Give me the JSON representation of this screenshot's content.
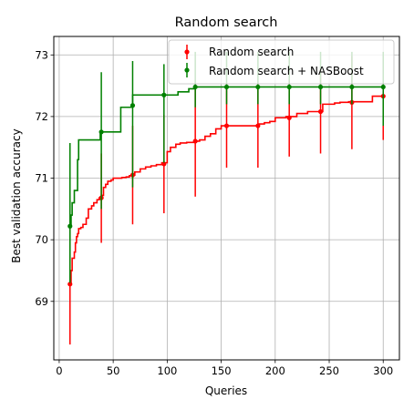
{
  "chart_data": {
    "type": "line",
    "title": "Random search",
    "xlabel": "Queries",
    "ylabel": "Best validation accuracy",
    "xlim": [
      -5,
      315
    ],
    "ylim": [
      68.05,
      73.3
    ],
    "xticks": [
      0,
      50,
      100,
      150,
      200,
      250,
      300
    ],
    "yticks": [
      69,
      70,
      71,
      72,
      73
    ],
    "grid": true,
    "legend_position": "top-right",
    "colors": {
      "Random search": "#ff0000",
      "Random search + NASBoost": "#008000"
    },
    "series": [
      {
        "name": "Random search",
        "color": "#ff0000",
        "x": [
          10,
          11,
          12,
          13,
          14,
          15,
          16,
          17,
          18,
          20,
          22,
          25,
          27,
          30,
          32,
          35,
          37,
          39,
          41,
          43,
          45,
          48,
          50,
          53,
          58,
          62,
          65,
          68,
          70,
          75,
          80,
          85,
          90,
          95,
          97,
          100,
          103,
          108,
          112,
          118,
          125,
          130,
          135,
          140,
          145,
          150,
          155,
          165,
          175,
          180,
          185,
          190,
          195,
          200,
          210,
          220,
          230,
          238,
          244,
          255,
          260,
          268,
          280,
          290,
          300
        ],
        "y": [
          69.28,
          69.5,
          69.7,
          69.7,
          69.8,
          69.95,
          70.05,
          70.1,
          70.18,
          70.2,
          70.25,
          70.35,
          70.5,
          70.55,
          70.6,
          70.65,
          70.68,
          70.72,
          70.85,
          70.9,
          70.95,
          70.97,
          71.0,
          71.0,
          71.01,
          71.02,
          71.04,
          71.05,
          71.1,
          71.15,
          71.18,
          71.2,
          71.22,
          71.25,
          71.25,
          71.43,
          71.5,
          71.55,
          71.57,
          71.58,
          71.6,
          71.62,
          71.68,
          71.72,
          71.8,
          71.85,
          71.85,
          71.85,
          71.85,
          71.85,
          71.88,
          71.9,
          71.92,
          71.98,
          72.0,
          72.05,
          72.08,
          72.08,
          72.2,
          72.22,
          72.23,
          72.24,
          72.24,
          72.33,
          72.33
        ],
        "markers": [
          {
            "x": 10,
            "y": 69.28,
            "low": 68.3,
            "high": 70.25
          },
          {
            "x": 39,
            "y": 70.68,
            "low": 69.95,
            "high": 71.4
          },
          {
            "x": 68,
            "y": 71.05,
            "low": 70.25,
            "high": 71.85
          },
          {
            "x": 97,
            "y": 71.23,
            "low": 70.43,
            "high": 72.03
          },
          {
            "x": 126,
            "y": 71.6,
            "low": 70.7,
            "high": 72.47
          },
          {
            "x": 155,
            "y": 71.85,
            "low": 71.17,
            "high": 72.52
          },
          {
            "x": 184,
            "y": 71.85,
            "low": 71.17,
            "high": 72.53
          },
          {
            "x": 213,
            "y": 71.98,
            "low": 71.35,
            "high": 72.6
          },
          {
            "x": 242,
            "y": 72.08,
            "low": 71.4,
            "high": 72.77
          },
          {
            "x": 271,
            "y": 72.23,
            "low": 71.47,
            "high": 72.98
          },
          {
            "x": 300,
            "y": 72.33,
            "low": 71.62,
            "high": 73.03
          }
        ]
      },
      {
        "name": "Random search + NASBoost",
        "color": "#008000",
        "x": [
          10,
          11,
          12,
          14,
          15,
          16,
          17,
          18,
          20,
          25,
          30,
          35,
          38,
          39,
          40,
          45,
          50,
          55,
          57,
          60,
          65,
          67,
          68,
          70,
          80,
          90,
          95,
          97,
          100,
          110,
          120,
          124,
          126,
          130,
          150,
          180,
          200,
          250,
          300
        ],
        "y": [
          70.22,
          70.4,
          70.6,
          70.8,
          70.8,
          70.8,
          71.3,
          71.62,
          71.62,
          71.62,
          71.62,
          71.62,
          71.75,
          71.75,
          71.75,
          71.75,
          71.75,
          71.75,
          72.15,
          72.15,
          72.15,
          72.18,
          72.35,
          72.35,
          72.35,
          72.35,
          72.35,
          72.35,
          72.35,
          72.4,
          72.45,
          72.45,
          72.48,
          72.48,
          72.48,
          72.48,
          72.48,
          72.48,
          72.48
        ],
        "markers": [
          {
            "x": 10,
            "y": 70.22,
            "low": 69.3,
            "high": 71.57
          },
          {
            "x": 39,
            "y": 71.75,
            "low": 70.5,
            "high": 72.72
          },
          {
            "x": 68,
            "y": 72.18,
            "low": 70.85,
            "high": 72.9
          },
          {
            "x": 97,
            "y": 72.35,
            "low": 71.25,
            "high": 72.85
          },
          {
            "x": 126,
            "y": 72.48,
            "low": 72.15,
            "high": 73.05
          },
          {
            "x": 155,
            "y": 72.48,
            "low": 72.2,
            "high": 73.05
          },
          {
            "x": 184,
            "y": 72.48,
            "low": 72.2,
            "high": 73.05
          },
          {
            "x": 213,
            "y": 72.48,
            "low": 72.2,
            "high": 73.05
          },
          {
            "x": 242,
            "y": 72.48,
            "low": 72.2,
            "high": 73.05
          },
          {
            "x": 271,
            "y": 72.48,
            "low": 72.2,
            "high": 73.05
          },
          {
            "x": 300,
            "y": 72.48,
            "low": 71.85,
            "high": 73.05
          }
        ]
      }
    ]
  }
}
